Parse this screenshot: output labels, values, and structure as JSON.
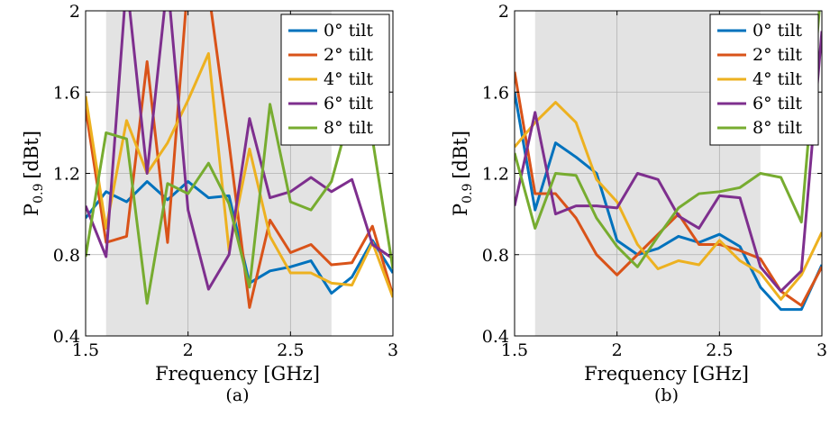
{
  "chart_data": [
    {
      "type": "line",
      "subcaption": "(a)",
      "xlabel": "Frequency [GHz]",
      "ylabel_main": "P",
      "ylabel_sub": "0.9",
      "ylabel_unit": "[dBt]",
      "xlim": [
        1.5,
        3.0
      ],
      "ylim": [
        0.4,
        2.0
      ],
      "xticks": [
        "1.5",
        "2",
        "2.5",
        "3"
      ],
      "xtick_values": [
        1.5,
        2.0,
        2.5,
        3.0
      ],
      "yticks": [
        "0.4",
        "0.8",
        "1.2",
        "1.6",
        "2"
      ],
      "ytick_values": [
        0.4,
        0.8,
        1.2,
        1.6,
        2.0
      ],
      "grid": true,
      "shaded_band": [
        1.6,
        2.7
      ],
      "legend_position": "top-right",
      "x": [
        1.5,
        1.6,
        1.7,
        1.8,
        1.9,
        2.0,
        2.1,
        2.2,
        2.3,
        2.4,
        2.5,
        2.6,
        2.7,
        2.8,
        2.9,
        3.0
      ],
      "series": [
        {
          "name": "0° tilt",
          "color": "#0072BD",
          "values": [
            0.98,
            1.11,
            1.06,
            1.16,
            1.07,
            1.16,
            1.08,
            1.09,
            0.66,
            0.72,
            0.74,
            0.77,
            0.61,
            0.69,
            0.87,
            0.71
          ]
        },
        {
          "name": "2° tilt",
          "color": "#D95319",
          "values": [
            1.52,
            0.86,
            0.89,
            1.75,
            0.86,
            2.15,
            2.1,
            1.35,
            0.54,
            0.97,
            0.81,
            0.85,
            0.75,
            0.76,
            0.94,
            0.6
          ]
        },
        {
          "name": "4° tilt",
          "color": "#EDB120",
          "values": [
            1.58,
            0.93,
            1.46,
            1.2,
            1.35,
            1.56,
            1.79,
            0.82,
            1.32,
            0.89,
            0.71,
            0.71,
            0.66,
            0.65,
            0.86,
            0.59
          ]
        },
        {
          "name": "6° tilt",
          "color": "#7E2F8E",
          "values": [
            1.04,
            0.79,
            2.15,
            1.2,
            2.15,
            1.02,
            0.63,
            0.8,
            1.47,
            1.08,
            1.11,
            1.18,
            1.11,
            1.17,
            0.85,
            0.78
          ]
        },
        {
          "name": "8° tilt",
          "color": "#77AC30",
          "values": [
            0.79,
            1.4,
            1.37,
            0.56,
            1.15,
            1.1,
            1.25,
            1.05,
            0.64,
            1.54,
            1.06,
            1.02,
            1.16,
            1.53,
            1.37,
            0.73
          ]
        }
      ]
    },
    {
      "type": "line",
      "subcaption": "(b)",
      "xlabel": "Frequency [GHz]",
      "ylabel_main": "P",
      "ylabel_sub": "0.9",
      "ylabel_unit": "[dBt]",
      "xlim": [
        1.5,
        3.0
      ],
      "ylim": [
        0.4,
        2.0
      ],
      "xticks": [
        "1.5",
        "2",
        "2.5",
        "3"
      ],
      "xtick_values": [
        1.5,
        2.0,
        2.5,
        3.0
      ],
      "yticks": [
        "0.4",
        "0.8",
        "1.2",
        "1.6",
        "2"
      ],
      "ytick_values": [
        0.4,
        0.8,
        1.2,
        1.6,
        2.0
      ],
      "grid": true,
      "shaded_band": [
        1.6,
        2.7
      ],
      "legend_position": "top-right",
      "x": [
        1.5,
        1.6,
        1.7,
        1.8,
        1.9,
        2.0,
        2.1,
        2.2,
        2.3,
        2.4,
        2.5,
        2.6,
        2.7,
        2.8,
        2.9,
        3.0
      ],
      "series": [
        {
          "name": "0° tilt",
          "color": "#0072BD",
          "values": [
            1.6,
            1.02,
            1.35,
            1.28,
            1.2,
            0.87,
            0.8,
            0.83,
            0.89,
            0.86,
            0.9,
            0.84,
            0.64,
            0.53,
            0.53,
            0.75
          ]
        },
        {
          "name": "2° tilt",
          "color": "#D95319",
          "values": [
            1.7,
            1.1,
            1.1,
            0.98,
            0.8,
            0.7,
            0.8,
            0.9,
            1.0,
            0.85,
            0.85,
            0.82,
            0.78,
            0.62,
            0.55,
            0.74
          ]
        },
        {
          "name": "4° tilt",
          "color": "#EDB120",
          "values": [
            1.33,
            1.45,
            1.55,
            1.45,
            1.17,
            1.06,
            0.85,
            0.73,
            0.77,
            0.75,
            0.87,
            0.77,
            0.71,
            0.58,
            0.7,
            0.91
          ]
        },
        {
          "name": "6° tilt",
          "color": "#7E2F8E",
          "values": [
            1.04,
            1.5,
            1.0,
            1.04,
            1.04,
            1.03,
            1.2,
            1.17,
            0.99,
            0.93,
            1.09,
            1.08,
            0.74,
            0.62,
            0.72,
            1.9
          ]
        },
        {
          "name": "8° tilt",
          "color": "#77AC30",
          "values": [
            1.3,
            0.93,
            1.2,
            1.19,
            0.98,
            0.84,
            0.74,
            0.89,
            1.03,
            1.1,
            1.11,
            1.13,
            1.2,
            1.18,
            0.96,
            2.15
          ]
        }
      ]
    }
  ]
}
